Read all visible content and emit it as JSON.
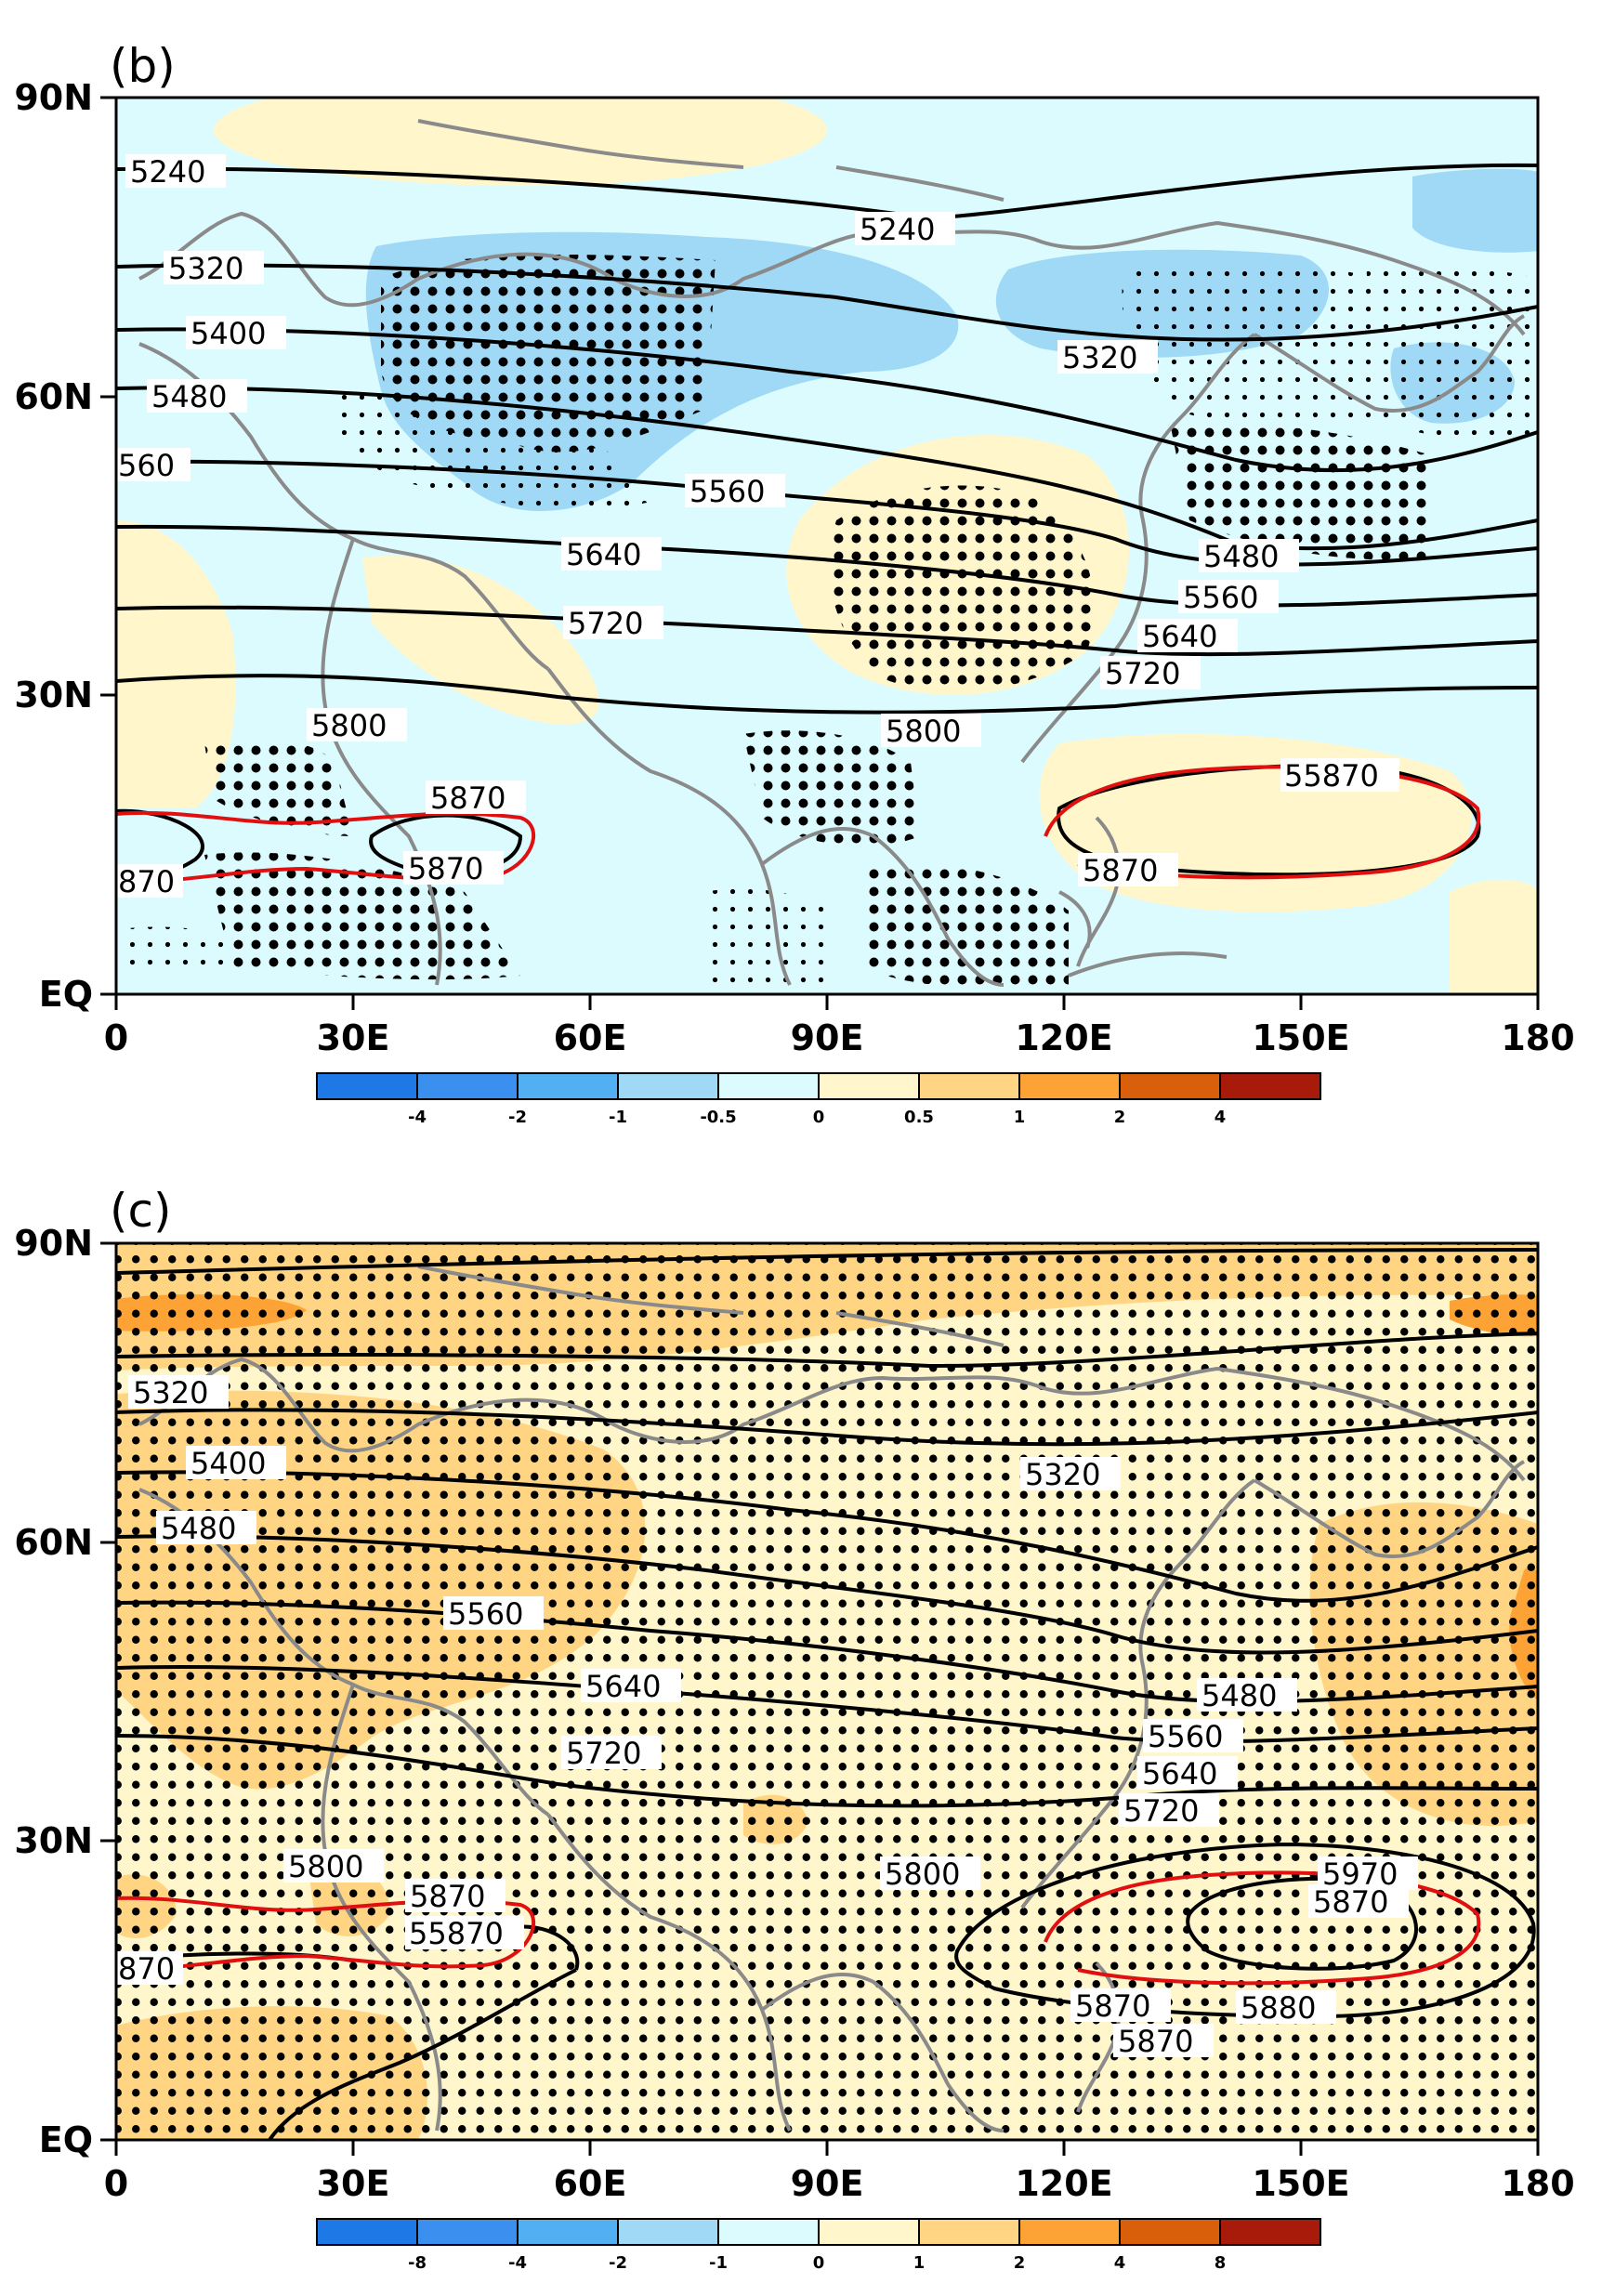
{
  "colors": {
    "blue_strong": "#1e78e6",
    "blue_mid": "#3b8fee",
    "blue_light": "#52b0f2",
    "blue_pale": "#9fd9f6",
    "cyan_pale": "#dcfbff",
    "yellow_pale": "#fff6cc",
    "orange_pale": "#ffd583",
    "orange_mid": "#fda336",
    "orange_strong": "#f5880c",
    "red_orange": "#d95f0a",
    "dark_red": "#a81a0a",
    "coast": "#8a8a8a",
    "contour": "#000000",
    "ridge_line": "#e01010"
  },
  "panels": [
    {
      "id": "b",
      "title": "(b)",
      "y_ticks": [
        "90N",
        "60N",
        "30N",
        "EQ"
      ],
      "x_ticks": [
        "0",
        "30E",
        "60E",
        "90E",
        "120E",
        "150E",
        "180"
      ],
      "colorbar_ticks": [
        "-4",
        "-2",
        "-1",
        "-0.5",
        "0",
        "0.5",
        "1",
        "2",
        "4"
      ],
      "contour_labels": [
        "5240",
        "5240",
        "5320",
        "5320",
        "5400",
        "5480",
        "5480",
        "560",
        "5560",
        "5560",
        "5640",
        "5640",
        "5720",
        "5720",
        "5800",
        "5800",
        "5870",
        "5870",
        "870",
        "5870",
        "55870"
      ]
    },
    {
      "id": "c",
      "title": "(c)",
      "y_ticks": [
        "90N",
        "60N",
        "30N",
        "EQ"
      ],
      "x_ticks": [
        "0",
        "30E",
        "60E",
        "90E",
        "120E",
        "150E",
        "180"
      ],
      "colorbar_ticks": [
        "-8",
        "-4",
        "-2",
        "-1",
        "0",
        "1",
        "2",
        "4",
        "8"
      ],
      "contour_labels": [
        "5320",
        "5320",
        "5400",
        "5480",
        "5480",
        "5560",
        "5560",
        "5640",
        "5640",
        "5720",
        "5720",
        "5800",
        "5800",
        "5870",
        "55870",
        "870",
        "5870",
        "5870",
        "5870",
        "5880",
        "5970"
      ]
    }
  ]
}
